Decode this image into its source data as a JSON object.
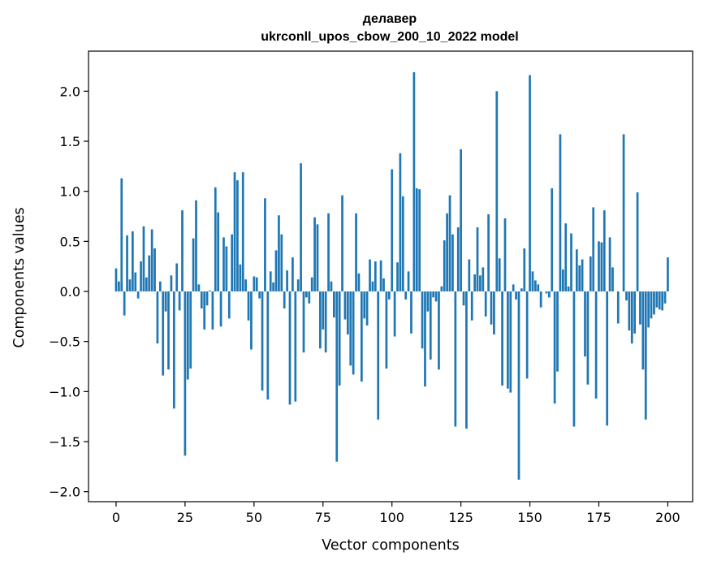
{
  "chart_data": {
    "type": "bar",
    "title_line1": "делавер",
    "title_line2": "ukrconll_upos_cbow_200_10_2022 model",
    "xlabel": "Vector components",
    "ylabel": "Components values",
    "xlim": [
      -10,
      209
    ],
    "ylim": [
      -2.1,
      2.4
    ],
    "x_ticks": [
      0,
      25,
      50,
      75,
      100,
      125,
      150,
      175,
      200
    ],
    "y_ticks": [
      -2.0,
      -1.5,
      -1.0,
      -0.5,
      0.0,
      0.5,
      1.0,
      1.5,
      2.0
    ],
    "y_tick_labels": [
      "−2.0",
      "−1.5",
      "−1.0",
      "−0.5",
      "0.0",
      "0.5",
      "1.0",
      "1.5",
      "2.0"
    ],
    "x_tick_labels": [
      "0",
      "25",
      "50",
      "75",
      "100",
      "125",
      "150",
      "175",
      "200"
    ],
    "bar_color": "#1f77b4",
    "values": [
      0.23,
      0.1,
      1.13,
      -0.24,
      0.56,
      0.12,
      0.6,
      0.19,
      -0.07,
      0.3,
      0.65,
      0.14,
      0.36,
      0.62,
      0.43,
      -0.52,
      0.1,
      -0.84,
      -0.2,
      -0.78,
      0.16,
      -1.17,
      0.28,
      -0.19,
      0.81,
      -1.64,
      -0.88,
      -0.77,
      0.53,
      0.91,
      0.07,
      -0.17,
      -0.38,
      -0.14,
      0.01,
      -0.38,
      1.04,
      0.79,
      -0.35,
      0.54,
      0.45,
      -0.27,
      0.57,
      1.19,
      1.11,
      0.27,
      1.19,
      0.12,
      -0.29,
      -0.58,
      0.15,
      0.14,
      -0.07,
      -0.99,
      0.93,
      -1.08,
      0.2,
      0.09,
      0.41,
      0.76,
      0.57,
      -0.17,
      0.21,
      -1.13,
      0.34,
      -1.1,
      0.12,
      1.28,
      -0.61,
      -0.06,
      -0.12,
      0.14,
      0.74,
      0.67,
      -0.57,
      -0.38,
      -0.61,
      0.78,
      0.1,
      -0.26,
      -1.7,
      -0.94,
      0.96,
      -0.28,
      -0.43,
      -0.74,
      -0.83,
      0.78,
      0.18,
      -0.9,
      -0.27,
      -0.34,
      0.32,
      0.1,
      0.3,
      -1.28,
      0.31,
      0.13,
      -0.77,
      -0.08,
      1.22,
      -0.45,
      0.29,
      1.38,
      0.95,
      -0.08,
      0.2,
      -0.42,
      2.19,
      1.03,
      1.02,
      -0.57,
      -0.95,
      -0.2,
      -0.68,
      -0.06,
      -0.1,
      -0.78,
      0.05,
      0.51,
      0.78,
      0.96,
      0.57,
      -1.35,
      0.64,
      1.42,
      -0.14,
      -1.37,
      0.32,
      -0.29,
      0.17,
      0.64,
      0.16,
      0.24,
      -0.25,
      0.77,
      -0.33,
      -0.43,
      2.0,
      0.33,
      -0.94,
      0.73,
      -0.97,
      -1.01,
      0.07,
      -0.08,
      -1.88,
      0.03,
      0.43,
      -0.87,
      2.16,
      0.2,
      0.11,
      0.07,
      -0.16,
      0.0,
      -0.02,
      -0.06,
      1.03,
      -1.12,
      -0.8,
      1.57,
      0.22,
      0.68,
      0.05,
      0.58,
      -1.35,
      0.42,
      0.26,
      0.32,
      -0.65,
      -0.93,
      0.35,
      0.84,
      -1.07,
      0.5,
      0.49,
      0.81,
      -1.34,
      0.54,
      0.24,
      0.0,
      -0.32,
      0.0,
      1.57,
      -0.09,
      -0.39,
      -0.52,
      -0.42,
      0.99,
      -0.33,
      -0.78,
      -1.28,
      -0.36,
      -0.27,
      -0.23,
      -0.16,
      -0.18,
      -0.19,
      -0.12,
      0.34
    ]
  }
}
